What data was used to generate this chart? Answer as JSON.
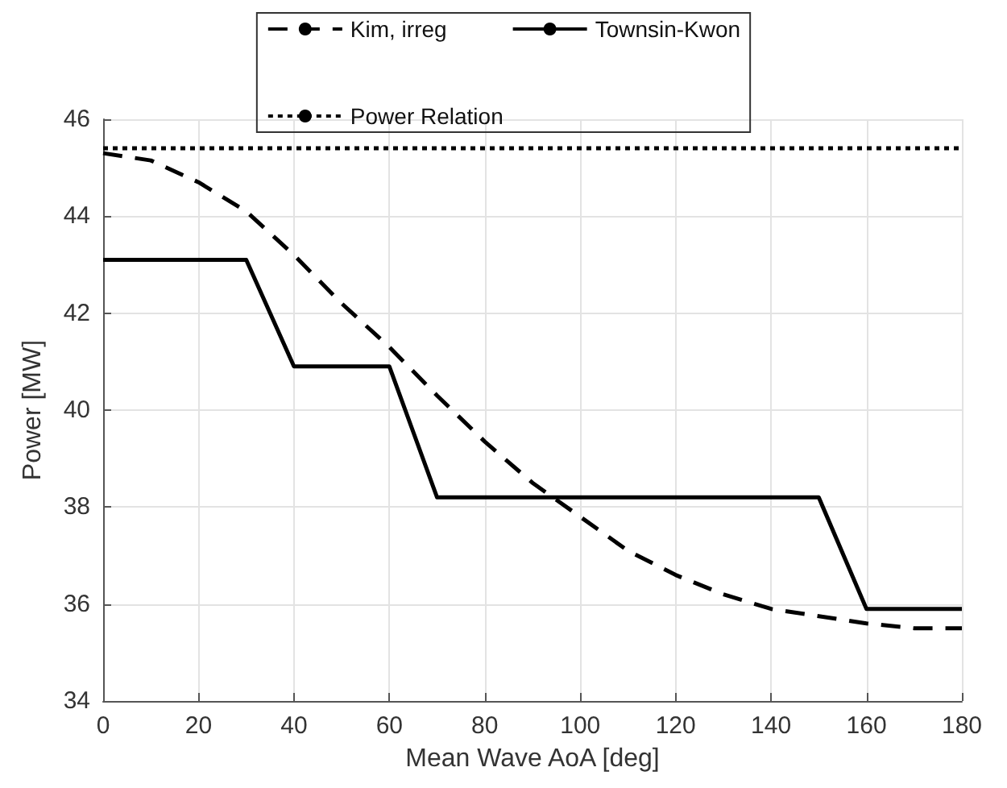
{
  "chart_data": {
    "type": "line",
    "xlabel": "Mean Wave AoA [deg]",
    "ylabel": "Power [MW]",
    "xlim": [
      0,
      180
    ],
    "xticks": [
      0,
      20,
      40,
      60,
      80,
      100,
      120,
      140,
      160,
      180
    ],
    "ylim": [
      34,
      46
    ],
    "yticks": [
      34,
      36,
      38,
      40,
      42,
      44,
      46
    ],
    "grid": true,
    "legend": "top",
    "marker": "none",
    "series": [
      {
        "name": "Kim, irreg",
        "color": "#000000",
        "line_style": "dashed",
        "x": [
          0,
          10,
          20,
          30,
          40,
          50,
          60,
          70,
          80,
          90,
          100,
          110,
          120,
          130,
          140,
          150,
          160,
          170,
          180
        ],
        "values": [
          45.3,
          45.15,
          44.7,
          44.1,
          43.2,
          42.2,
          41.3,
          40.3,
          39.35,
          38.5,
          37.8,
          37.1,
          36.6,
          36.2,
          35.9,
          35.75,
          35.6,
          35.5,
          35.5
        ]
      },
      {
        "name": "Townsin-Kwon",
        "color": "#000000",
        "line_style": "solid",
        "x": [
          0,
          30,
          40,
          60,
          70,
          150,
          160,
          180
        ],
        "values": [
          43.1,
          43.1,
          40.9,
          40.9,
          38.2,
          38.2,
          35.9,
          35.9
        ]
      },
      {
        "name": "Power Relation",
        "color": "#000000",
        "line_style": "dotted",
        "x": [
          0,
          180
        ],
        "values": [
          45.4,
          45.4
        ]
      }
    ]
  }
}
